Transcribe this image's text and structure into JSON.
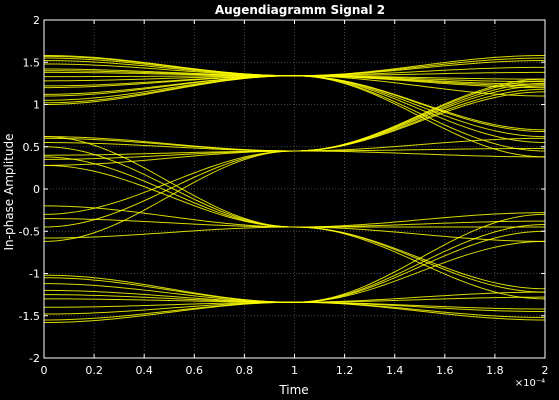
{
  "chart_data": {
    "type": "line",
    "title": "Augendiagramm Signal 2",
    "xlabel": "Time",
    "ylabel": "In-phase Amplitude",
    "x_exponent_label": "×10⁻⁴",
    "xlim": [
      0,
      2
    ],
    "ylim": [
      -2,
      2
    ],
    "xticks": [
      0,
      0.2,
      0.4,
      0.6,
      0.8,
      1,
      1.2,
      1.4,
      1.6,
      1.8,
      2
    ],
    "xtick_labels": [
      "0",
      "0.2",
      "0.4",
      "0.6",
      "0.8",
      "1",
      "1.2",
      "1.4",
      "1.6",
      "1.8",
      "2"
    ],
    "yticks": [
      -2,
      -1.5,
      -1,
      -0.5,
      0,
      0.5,
      1,
      1.5,
      2
    ],
    "ytick_labels": [
      "-2",
      "-1.5",
      "-1",
      "-0.5",
      "0",
      "0.5",
      "1",
      "1.5",
      "2"
    ],
    "grid": true,
    "legend": "none",
    "trace_color": "#ffff00",
    "background_color": "#000000",
    "axes_color": "#ffffff",
    "grid_color": "#5a5a5a",
    "levels": [
      -1.34,
      -0.45,
      0.45,
      1.34
    ],
    "series": [
      {
        "x": [
          0,
          1,
          2
        ],
        "values": [
          1.58,
          1.34,
          1.58
        ]
      },
      {
        "x": [
          0,
          1,
          2
        ],
        "values": [
          1.55,
          1.34,
          1.52
        ]
      },
      {
        "x": [
          0,
          1,
          2
        ],
        "values": [
          1.52,
          1.34,
          1.55
        ]
      },
      {
        "x": [
          0,
          1,
          2
        ],
        "values": [
          1.42,
          1.34,
          1.44
        ]
      },
      {
        "x": [
          0,
          1,
          2
        ],
        "values": [
          1.38,
          1.34,
          1.38
        ]
      },
      {
        "x": [
          0,
          1,
          2
        ],
        "values": [
          1.33,
          1.34,
          1.3
        ]
      },
      {
        "x": [
          0,
          1,
          2
        ],
        "values": [
          1.28,
          1.34,
          1.24
        ]
      },
      {
        "x": [
          0,
          1,
          2
        ],
        "values": [
          1.22,
          1.34,
          1.2
        ]
      },
      {
        "x": [
          0,
          1,
          2
        ],
        "values": [
          1.12,
          1.34,
          1.27
        ]
      },
      {
        "x": [
          0,
          1,
          2
        ],
        "values": [
          1.05,
          1.34,
          1.22
        ]
      },
      {
        "x": [
          0,
          1,
          2
        ],
        "values": [
          1.0,
          1.34,
          1.1
        ]
      },
      {
        "x": [
          0,
          1,
          2
        ],
        "values": [
          1.57,
          1.34,
          0.62
        ]
      },
      {
        "x": [
          0,
          1,
          2
        ],
        "values": [
          1.48,
          1.34,
          0.55
        ]
      },
      {
        "x": [
          0,
          1,
          2
        ],
        "values": [
          1.4,
          1.34,
          0.68
        ]
      },
      {
        "x": [
          0,
          1,
          2
        ],
        "values": [
          1.1,
          1.34,
          0.7
        ]
      },
      {
        "x": [
          0,
          1,
          2
        ],
        "values": [
          1.2,
          1.34,
          0.45
        ]
      },
      {
        "x": [
          0,
          1,
          2
        ],
        "values": [
          1.02,
          1.34,
          0.38
        ]
      },
      {
        "x": [
          0,
          1,
          2
        ],
        "values": [
          0.62,
          0.45,
          0.6
        ]
      },
      {
        "x": [
          0,
          1,
          2
        ],
        "values": [
          0.55,
          0.45,
          0.48
        ]
      },
      {
        "x": [
          0,
          1,
          2
        ],
        "values": [
          0.35,
          0.45,
          0.38
        ]
      },
      {
        "x": [
          0,
          1,
          2
        ],
        "values": [
          0.6,
          0.45,
          1.22
        ]
      },
      {
        "x": [
          0,
          1,
          2
        ],
        "values": [
          0.4,
          0.45,
          1.28
        ]
      },
      {
        "x": [
          0,
          1,
          2
        ],
        "values": [
          0.28,
          0.45,
          1.15
        ]
      },
      {
        "x": [
          0,
          1,
          2
        ],
        "values": [
          -0.3,
          0.45,
          1.3
        ]
      },
      {
        "x": [
          0,
          1,
          2
        ],
        "values": [
          -0.45,
          0.45,
          1.18
        ]
      },
      {
        "x": [
          0,
          1,
          2
        ],
        "values": [
          -0.62,
          0.45,
          1.25
        ]
      },
      {
        "x": [
          0,
          1,
          2
        ],
        "values": [
          0.62,
          -0.45,
          -0.62
        ]
      },
      {
        "x": [
          0,
          1,
          2
        ],
        "values": [
          0.5,
          -0.45,
          -1.22
        ]
      },
      {
        "x": [
          0,
          1,
          2
        ],
        "values": [
          0.38,
          -0.45,
          -1.3
        ]
      },
      {
        "x": [
          0,
          1,
          2
        ],
        "values": [
          0.28,
          -0.45,
          -1.18
        ]
      },
      {
        "x": [
          0,
          1,
          2
        ],
        "values": [
          -0.2,
          -0.45,
          -0.28
        ]
      },
      {
        "x": [
          0,
          1,
          2
        ],
        "values": [
          -0.35,
          -0.45,
          -0.45
        ]
      },
      {
        "x": [
          0,
          1,
          2
        ],
        "values": [
          -0.58,
          -0.45,
          -0.38
        ]
      },
      {
        "x": [
          0,
          1,
          2
        ],
        "values": [
          -1.02,
          -1.34,
          -0.3
        ]
      },
      {
        "x": [
          0,
          1,
          2
        ],
        "values": [
          -1.12,
          -1.34,
          -0.5
        ]
      },
      {
        "x": [
          0,
          1,
          2
        ],
        "values": [
          -1.2,
          -1.34,
          -0.42
        ]
      },
      {
        "x": [
          0,
          1,
          2
        ],
        "values": [
          -1.25,
          -1.34,
          -0.62
        ]
      },
      {
        "x": [
          0,
          1,
          2
        ],
        "values": [
          -1.3,
          -1.34,
          -1.22
        ]
      },
      {
        "x": [
          0,
          1,
          2
        ],
        "values": [
          -1.4,
          -1.34,
          -1.28
        ]
      },
      {
        "x": [
          0,
          1,
          2
        ],
        "values": [
          -1.48,
          -1.34,
          -1.42
        ]
      },
      {
        "x": [
          0,
          1,
          2
        ],
        "values": [
          -1.55,
          -1.34,
          -1.55
        ]
      },
      {
        "x": [
          0,
          1,
          2
        ],
        "values": [
          -1.58,
          -1.34,
          -1.45
        ]
      },
      {
        "x": [
          0,
          1,
          2
        ],
        "values": [
          -1.05,
          -1.34,
          -1.52
        ]
      }
    ]
  }
}
